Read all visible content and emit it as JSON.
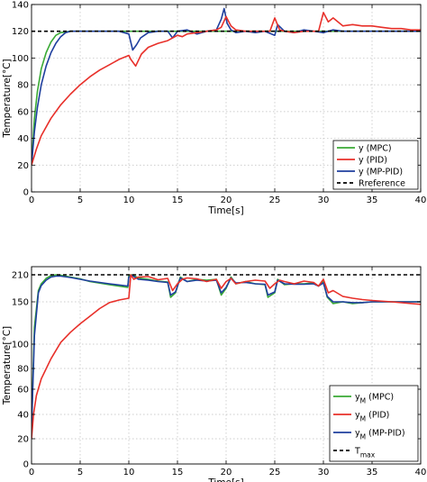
{
  "chart_data": [
    {
      "type": "line",
      "xlabel": "Time[s]",
      "ylabel": "Temperature[°C]",
      "xlim": [
        0,
        40
      ],
      "ylim": [
        0,
        140
      ],
      "xticks": [
        0,
        5,
        10,
        15,
        20,
        25,
        30,
        35,
        40
      ],
      "yticks": [
        0,
        20,
        40,
        60,
        80,
        100,
        120,
        140
      ],
      "xtick_labels": [
        "0",
        "5",
        "10",
        "15",
        "20",
        "25",
        "30",
        "35",
        "40"
      ],
      "ytick_labels": [
        "0",
        "20",
        "40",
        "60",
        "80",
        "100",
        "120",
        "140"
      ],
      "grid": true,
      "legend_position": "bottom-right",
      "series": [
        {
          "name": "y (MPC)",
          "color": "#3aaa35",
          "style": "solid",
          "x": [
            0,
            0.3,
            0.6,
            1,
            1.5,
            2,
            2.5,
            3,
            4,
            5,
            10,
            14,
            15,
            19,
            20,
            25,
            30,
            35,
            40
          ],
          "y": [
            20,
            55,
            75,
            92,
            104,
            112,
            117,
            119,
            120,
            120,
            120,
            120,
            120,
            120,
            120,
            120,
            120,
            120,
            120
          ]
        },
        {
          "name": "y (PID)",
          "color": "#e8302a",
          "style": "solid",
          "x": [
            0,
            0.5,
            1,
            2,
            3,
            4,
            5,
            6,
            7,
            8,
            9,
            10,
            10.2,
            10.7,
            11.3,
            12,
            13,
            14,
            14.5,
            15,
            15.5,
            16,
            17,
            18,
            19,
            19.5,
            20,
            20.5,
            21,
            22,
            23,
            24,
            24.5,
            25,
            25.5,
            26,
            27,
            28,
            29,
            29.5,
            30,
            30.5,
            31,
            32,
            33,
            34,
            35,
            36,
            37,
            38,
            39,
            40
          ],
          "y": [
            20,
            32,
            42,
            55,
            65,
            73,
            80,
            86,
            91,
            95,
            99,
            102,
            99,
            94,
            103,
            108,
            111,
            113,
            115,
            117,
            116,
            118,
            119,
            120,
            121,
            123,
            131,
            124,
            121,
            120,
            120,
            120,
            120,
            130,
            121,
            120,
            119,
            120,
            120,
            120,
            134,
            127,
            130,
            124,
            125,
            124,
            124,
            123,
            122,
            122,
            121,
            121
          ]
        },
        {
          "name": "y (MP-PID)",
          "color": "#1f3f9e",
          "style": "solid",
          "x": [
            0,
            0.3,
            0.6,
            1,
            1.5,
            2,
            2.5,
            3,
            3.5,
            4,
            6,
            9,
            10,
            10.4,
            10.8,
            11.2,
            12,
            13,
            14,
            14.5,
            15,
            16,
            17,
            18,
            19,
            19.5,
            19.8,
            20.1,
            20.5,
            21,
            22,
            23,
            24,
            25,
            25.3,
            26,
            27,
            28,
            29,
            30,
            31,
            32,
            35,
            40
          ],
          "y": [
            20,
            45,
            63,
            80,
            94,
            104,
            111,
            116,
            119,
            120,
            120,
            120,
            118,
            106,
            110,
            115,
            119,
            120,
            120,
            115,
            120,
            121,
            118,
            120,
            121,
            129,
            137,
            126,
            121,
            119,
            120,
            119,
            120,
            117,
            125,
            120,
            119,
            121,
            120,
            119,
            121,
            120,
            120,
            120
          ]
        },
        {
          "name": "Rreference",
          "color": "#000000",
          "style": "dashed",
          "x": [
            0,
            40
          ],
          "y": [
            120,
            120
          ]
        }
      ]
    },
    {
      "type": "line",
      "xlabel": "Time[s]",
      "ylabel": "Temperature[°C]",
      "xlim": [
        0,
        40
      ],
      "ylim": [
        0,
        216
      ],
      "xticks": [
        0,
        5,
        10,
        15,
        20,
        25,
        30,
        35,
        40
      ],
      "yticks": [
        0,
        20,
        40,
        60,
        80,
        100,
        150,
        210
      ],
      "xtick_labels": [
        "0",
        "5",
        "10",
        "15",
        "20",
        "25",
        "30",
        "35",
        "40"
      ],
      "ytick_labels": [
        "0",
        "20",
        "40",
        "60",
        "80",
        "100",
        "150",
        "210"
      ],
      "grid": true,
      "legend_position": "bottom-right",
      "series": [
        {
          "name": "y_M (MPC)",
          "label_main": "y",
          "label_sub": "M",
          "label_rest": " (MPC)",
          "color": "#3aaa35",
          "style": "solid",
          "x": [
            0,
            0.3,
            0.7,
            1,
            1.5,
            2,
            2.5,
            3,
            4,
            5,
            6,
            8,
            9.9,
            10,
            10.3,
            11,
            12,
            13,
            14,
            14.3,
            14.8,
            15.3,
            16,
            17,
            18,
            19,
            19.5,
            20,
            20.5,
            21,
            22,
            23,
            24,
            24.3,
            25,
            25.3,
            26,
            27,
            28,
            29,
            29.5,
            30,
            30.4,
            31,
            32,
            33,
            34,
            35,
            40
          ],
          "y": [
            30,
            120,
            175,
            190,
            202,
            208,
            210,
            209,
            205,
            201,
            195,
            188,
            182,
            209,
            210,
            203,
            200,
            196,
            194,
            160,
            170,
            205,
            195,
            200,
            198,
            200,
            165,
            180,
            205,
            190,
            195,
            190,
            188,
            160,
            170,
            200,
            188,
            190,
            190,
            192,
            185,
            195,
            160,
            148,
            150,
            148,
            149,
            150,
            150
          ]
        },
        {
          "name": "y_M (PID)",
          "label_main": "y",
          "label_sub": "M",
          "label_rest": " (PID)",
          "color": "#e8302a",
          "style": "solid",
          "x": [
            0,
            0.2,
            0.5,
            1,
            2,
            3,
            4,
            5,
            6,
            7,
            8,
            9,
            10,
            10.2,
            10.5,
            11,
            12,
            13,
            14,
            14.5,
            15,
            15.5,
            16,
            17,
            18,
            19,
            19.5,
            20,
            20.5,
            21,
            22,
            23,
            24,
            24.5,
            25,
            25.5,
            26,
            27,
            28,
            29,
            29.5,
            30,
            30.5,
            31,
            32,
            33,
            34,
            35,
            37,
            40
          ],
          "y": [
            20,
            40,
            55,
            70,
            88,
            102,
            114,
            124,
            133,
            142,
            149,
            154,
            158,
            210,
            200,
            205,
            206,
            199,
            202,
            175,
            190,
            200,
            203,
            201,
            195,
            200,
            180,
            195,
            202,
            190,
            195,
            198,
            196,
            180,
            190,
            198,
            195,
            190,
            196,
            193,
            185,
            200,
            170,
            175,
            162,
            158,
            155,
            153,
            150,
            147
          ]
        },
        {
          "name": "y_M (MP-PID)",
          "label_main": "y",
          "label_sub": "M",
          "label_rest": " (MP-PID)",
          "color": "#1f3f9e",
          "style": "solid",
          "x": [
            0,
            0.3,
            0.7,
            1,
            1.5,
            2,
            2.5,
            3,
            4,
            5,
            6,
            8,
            9.9,
            10,
            10.3,
            11,
            12,
            13,
            14,
            14.3,
            14.8,
            15.3,
            16,
            17,
            18,
            19,
            19.5,
            20,
            20.5,
            21,
            22,
            23,
            24,
            24.3,
            25,
            25.3,
            26,
            27,
            28,
            29,
            29.5,
            30,
            30.4,
            31,
            32,
            33,
            34,
            35,
            40
          ],
          "y": [
            28,
            110,
            170,
            186,
            198,
            205,
            207,
            207,
            204,
            200,
            196,
            190,
            185,
            205,
            209,
            200,
            198,
            195,
            193,
            165,
            172,
            203,
            195,
            198,
            196,
            198,
            170,
            182,
            203,
            192,
            193,
            190,
            189,
            165,
            172,
            198,
            190,
            189,
            189,
            190,
            185,
            192,
            162,
            150,
            150,
            149,
            149,
            150,
            150
          ]
        },
        {
          "name": "T_max",
          "label_main": "T",
          "label_sub": "max",
          "label_rest": "",
          "color": "#000000",
          "style": "dashed",
          "x": [
            0,
            40
          ],
          "y": [
            210,
            210
          ]
        }
      ]
    }
  ]
}
